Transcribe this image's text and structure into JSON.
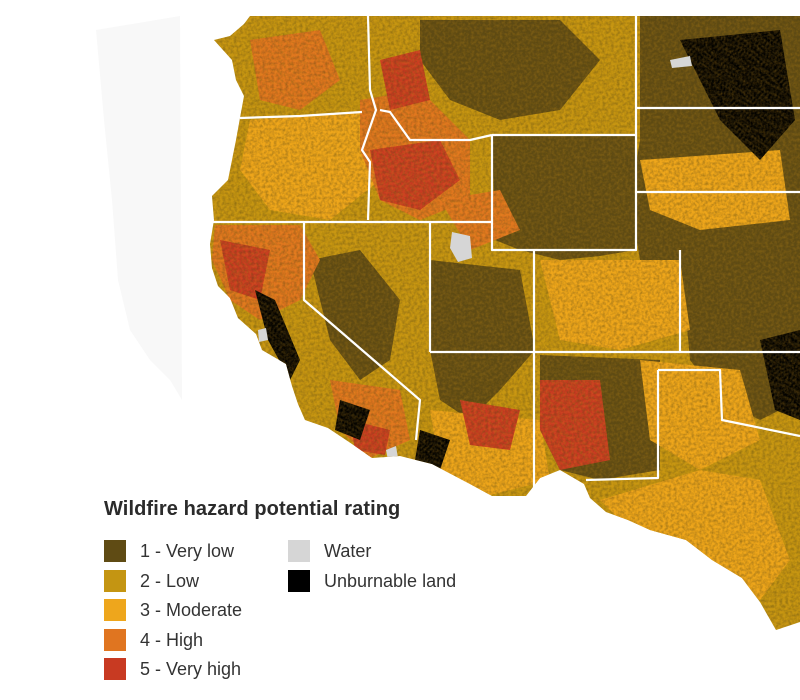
{
  "map": {
    "region": "Western United States",
    "colors": {
      "very_low": "#5f4b14",
      "low": "#c49512",
      "moderate": "#eea61c",
      "high": "#e07520",
      "very_high": "#c83a22",
      "water": "#d6d6d6",
      "unburnable": "#000000",
      "state_border": "#ffffff",
      "ocean_background": "#ffffff"
    }
  },
  "legend": {
    "title": "Wildfire hazard potential rating",
    "items": [
      {
        "label": "1 - Very low",
        "color": "#5f4b14"
      },
      {
        "label": "2 - Low",
        "color": "#c49512"
      },
      {
        "label": "3 - Moderate",
        "color": "#eea61c"
      },
      {
        "label": "4 - High",
        "color": "#e07520"
      },
      {
        "label": "5 - Very high",
        "color": "#c83a22"
      },
      {
        "label": "Water",
        "color": "#d6d6d6"
      },
      {
        "label": "Unburnable land",
        "color": "#000000"
      }
    ]
  }
}
